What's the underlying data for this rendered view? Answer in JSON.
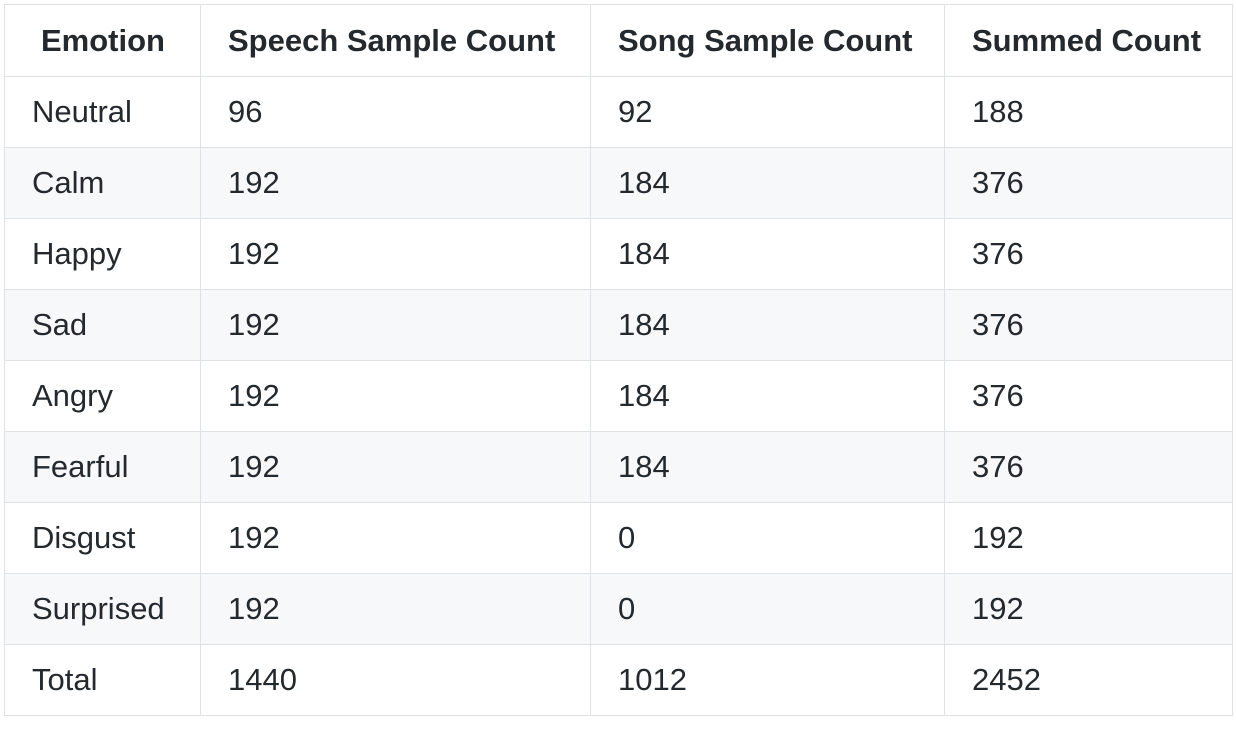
{
  "table": {
    "headers": [
      "Emotion",
      "Speech Sample Count",
      "Song Sample Count",
      "Summed Count"
    ],
    "rows": [
      [
        "Neutral",
        "96",
        "92",
        "188"
      ],
      [
        "Calm",
        "192",
        "184",
        "376"
      ],
      [
        "Happy",
        "192",
        "184",
        "376"
      ],
      [
        "Sad",
        "192",
        "184",
        "376"
      ],
      [
        "Angry",
        "192",
        "184",
        "376"
      ],
      [
        "Fearful",
        "192",
        "184",
        "376"
      ],
      [
        "Disgust",
        "192",
        "0",
        "192"
      ],
      [
        "Surprised",
        "192",
        "0",
        "192"
      ],
      [
        "Total",
        "1440",
        "1012",
        "2452"
      ]
    ]
  },
  "colors": {
    "border": "#dfe2e5",
    "stripe": "#f6f8fa",
    "text": "#24292e"
  }
}
